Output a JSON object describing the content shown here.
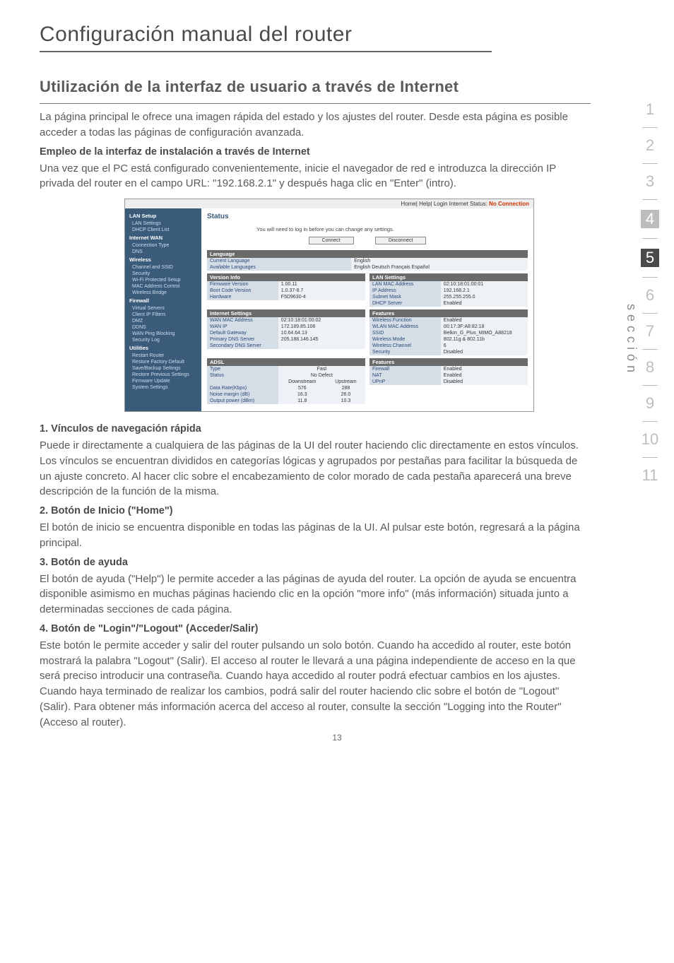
{
  "page": {
    "title": "Configuración manual del router",
    "section_heading": "Utilización de la interfaz de usuario a través de Internet",
    "intro": "La página principal le ofrece una imagen rápida del estado y los ajustes del router. Desde esta página es posible acceder a todas las páginas de configuración avanzada.",
    "sub_bold_1": "Empleo de la interfaz de instalación a través de Internet",
    "intro2": "Una vez que el PC está configurado convenientemente, inicie el navegador de red e introduzca la dirección IP privada del router en el campo URL: \"192.168.2.1\" y después haga clic en \"Enter\" (intro).",
    "h_1": "1.   Vínculos de navegación rápida",
    "p_1": "Puede ir directamente a cualquiera de las páginas de la UI del router haciendo clic directamente en estos vínculos.  Los vínculos se encuentran divididos en categorías lógicas y agrupados por pestañas para facilitar la búsqueda de un ajuste concreto.  Al hacer clic sobre el encabezamiento de color morado de cada pestaña aparecerá una breve descripción de la función de la misma.",
    "h_2": "2.   Botón de Inicio (\"Home\")",
    "p_2": "El botón de inicio se encuentra disponible en todas las páginas de la UI. Al pulsar este botón, regresará a la página principal.",
    "h_3": "3.   Botón de ayuda",
    "p_3": "El botón de ayuda (\"Help\") le permite acceder a las páginas de ayuda del router. La opción de ayuda se encuentra disponible asimismo en muchas páginas haciendo clic en la opción \"more info\" (más información) situada junto a determinadas secciones de cada página.",
    "h_4": "4.   Botón de \"Login\"/\"Logout\" (Acceder/Salir)",
    "p_4": "Este botón le permite acceder y salir del router pulsando un solo botón. Cuando ha accedido al router, este botón mostrará la palabra \"Logout\" (Salir). El acceso al router le llevará a una página independiente de acceso en la que será preciso introducir una contraseña. Cuando haya accedido al router podrá efectuar cambios en los ajustes. Cuando haya terminado de realizar los cambios, podrá salir del router haciendo clic sobre el botón de \"Logout\" (Salir). Para obtener más información acerca del acceso al router, consulte la sección \"Logging into the Router\" (Acceso al router).",
    "page_number": "13",
    "vertical_label": "sección"
  },
  "side_nav": {
    "items": [
      "1",
      "2",
      "3",
      "4",
      "5",
      "6",
      "7",
      "8",
      "9",
      "10",
      "11"
    ],
    "highlight_grey_index": 3,
    "highlight_black_index": 4
  },
  "router": {
    "topbar": {
      "links": "Home| Help| Login   Internet Status:",
      "status": "No Connection"
    },
    "sidebar": [
      {
        "type": "hdr",
        "t": "LAN Setup"
      },
      {
        "type": "itm",
        "t": "LAN Settings"
      },
      {
        "type": "itm",
        "t": "DHCP Client List"
      },
      {
        "type": "hdr",
        "t": "Internet WAN"
      },
      {
        "type": "itm",
        "t": "Connection Type"
      },
      {
        "type": "itm",
        "t": "DNS"
      },
      {
        "type": "hdr",
        "t": "Wireless"
      },
      {
        "type": "itm",
        "t": "Channel and SSID"
      },
      {
        "type": "itm",
        "t": "Security"
      },
      {
        "type": "itm",
        "t": "Wi-Fi Protected Setup"
      },
      {
        "type": "itm",
        "t": "MAC Address Control"
      },
      {
        "type": "itm",
        "t": "Wireless Bridge"
      },
      {
        "type": "hdr",
        "t": "Firewall"
      },
      {
        "type": "itm",
        "t": "Virtual Servers"
      },
      {
        "type": "itm",
        "t": "Client IP Filters"
      },
      {
        "type": "itm",
        "t": "DMZ"
      },
      {
        "type": "itm",
        "t": "DDNS"
      },
      {
        "type": "itm",
        "t": "WAN Ping Blocking"
      },
      {
        "type": "itm",
        "t": "Security Log"
      },
      {
        "type": "hdr",
        "t": "Utilities"
      },
      {
        "type": "itm",
        "t": "Restart Router"
      },
      {
        "type": "itm",
        "t": "Restore Factory Default"
      },
      {
        "type": "itm",
        "t": "Save/Backup Settings"
      },
      {
        "type": "itm",
        "t": "Restore Previous Settings"
      },
      {
        "type": "itm",
        "t": "Firmware Update"
      },
      {
        "type": "itm",
        "t": "System Settings"
      }
    ],
    "status_title": "Status",
    "login_note": "You will need to log in before you can change any settings.",
    "btn_connect": "Connect",
    "btn_disconnect": "Disconnect",
    "language": {
      "hdr": "Language",
      "rows": [
        [
          "Current Language",
          "English"
        ],
        [
          "Available Languages",
          "English  Deutsch  Français  Español"
        ]
      ]
    },
    "version_info": {
      "hdr": "Version Info",
      "rows": [
        [
          "Firmware Version",
          "1.00.11"
        ],
        [
          "Boot Code Version",
          "1.0.37-8.7"
        ],
        [
          "Hardware",
          "F5D9630-4"
        ]
      ]
    },
    "lan_settings": {
      "hdr": "LAN Settings",
      "rows": [
        [
          "LAN MAC Address",
          "02:10:18:01:00:01"
        ],
        [
          "IP Address",
          "192.168.2.1"
        ],
        [
          "Subnet Mask",
          "255.255.255.0"
        ],
        [
          "DHCP Server",
          "Enabled"
        ]
      ]
    },
    "internet_settings": {
      "hdr": "Internet Settings",
      "rows": [
        [
          "WAN MAC Address",
          "02:10:18:01:00:02"
        ],
        [
          "WAN IP",
          "172.189.85.106"
        ],
        [
          "Default Gateway",
          "10.64.64.13"
        ],
        [
          "Primary DNS Server",
          "205.188.146.145"
        ],
        [
          "Secondary DNS Server",
          ""
        ]
      ]
    },
    "features": {
      "hdr": "Features",
      "rows": [
        [
          "Wireless Function",
          "Enabled"
        ],
        [
          "WLAN MAC Address",
          "00:17:3F:A8:82:18"
        ],
        [
          "SSID",
          "Belkin_G_Plus_MIMO_A88218"
        ],
        [
          "Wireless Mode",
          "802.11g & 802.11b"
        ],
        [
          "Wireless Channel",
          "6"
        ],
        [
          "Security",
          "Disabled"
        ]
      ]
    },
    "adsl": {
      "hdr": "ADSL",
      "cols": [
        "",
        "Downstream",
        "Upstream"
      ],
      "type_row": [
        "Type",
        "Fast",
        ""
      ],
      "status_row": [
        "Status",
        "No Defect",
        ""
      ],
      "rows": [
        [
          "Data Rate(Kbps)",
          "576",
          "288"
        ],
        [
          "Noise margin (dB)",
          "16.3",
          "26.0"
        ],
        [
          "Output power (dBm)",
          "11.8",
          "10.3"
        ]
      ]
    },
    "features2": {
      "hdr": "Features",
      "rows": [
        [
          "Firewall",
          "Enabled"
        ],
        [
          "NAT",
          "Enabled"
        ],
        [
          "UPnP",
          "Disabled"
        ]
      ]
    }
  },
  "colors": {
    "sidebar_bg": "#3b5b7a",
    "panel_hdr_bg": "#6a6a6a",
    "kcell_bg": "#d5dde7",
    "vcell_bg": "#eef2f7",
    "text_grey": "#5a5a5a",
    "light_grey": "#bdbdbd"
  }
}
